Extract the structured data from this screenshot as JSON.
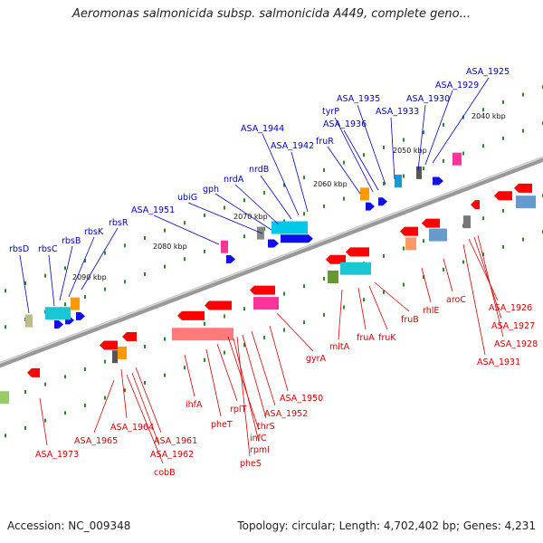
{
  "title": "Aeromonas salmonicida subsp. salmonicida A449, complete geno...",
  "footer": {
    "accession": "Accession: NC_009348",
    "stats": "Topology: circular; Length: 4,702,402 bp; Genes: 4,231"
  },
  "colors": {
    "forward_label": "#0000cc",
    "reverse_label": "#dd0000",
    "backbone": "#808080",
    "tick": "#2a8a2a"
  },
  "kbp_labels": [
    "2040 kbp",
    "2050 kbp",
    "2060 kbp",
    "2070 kbp",
    "2080 kbp",
    "2090 kbp"
  ],
  "forward_genes": [
    "rbsD",
    "rbsC",
    "rbsB",
    "rbsK",
    "rbsR",
    "ASA_1951",
    "ubiG",
    "gph",
    "nrdA",
    "nrdB",
    "ASA_1944",
    "ASA_1942",
    "fruR",
    "tyrP",
    "ASA_1936",
    "ASA_1935",
    "ASA_1933",
    "ASA_1930",
    "ASA_1929",
    "ASA_1925"
  ],
  "reverse_genes": [
    "ASA_1973",
    "ASA_1965",
    "ASA_1964",
    "ASA_1961",
    "ASA_1962",
    "cobB",
    "ihfA",
    "pheT",
    "rplT",
    "infC",
    "rpmI",
    "pheS",
    "thrS",
    "ASA_1952",
    "ASA_1950",
    "gyrA",
    "mltA",
    "fruA",
    "fruK",
    "fruB",
    "rhlE",
    "aroC",
    "ASA_1926",
    "ASA_1927",
    "ASA_1928",
    "ASA_1931"
  ]
}
